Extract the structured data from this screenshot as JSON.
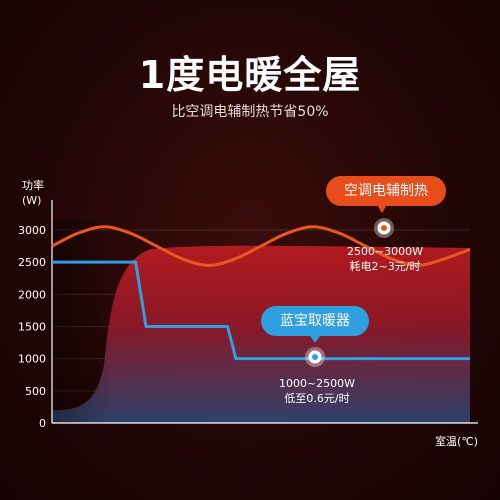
{
  "headline": "1度电暖全屋",
  "subline": "比空调电辅制热节省50%",
  "chart_data": {
    "type": "line",
    "ylabel": "功率\n(W)",
    "xlabel": "室温(℃)",
    "ylim": [
      0,
      3000
    ],
    "yticks": [
      0,
      500,
      1000,
      1500,
      2000,
      2500,
      3000
    ],
    "series": [
      {
        "name": "空调电辅制热",
        "color": "#e8571e",
        "annotation": "2500~3000W\n耗电2~3元/时",
        "x": [
          0,
          0.0625,
          0.125,
          0.1875,
          0.25,
          0.3125,
          0.375,
          0.4375,
          0.5,
          0.5625,
          0.625,
          0.6875,
          0.75,
          0.8125,
          0.875,
          0.9375,
          1.0
        ],
        "values": [
          2750,
          2950,
          3050,
          2950,
          2750,
          2550,
          2450,
          2550,
          2750,
          2950,
          3050,
          2950,
          2750,
          2550,
          2450,
          2550,
          2700
        ]
      },
      {
        "name": "蓝宝取暖器",
        "color": "#2e9fe2",
        "annotation": "1000~2500W\n低至0.6元/时",
        "x": [
          0,
          0.2,
          0.225,
          0.42,
          0.44,
          1.0
        ],
        "values": [
          2500,
          2500,
          1500,
          1500,
          1000,
          1000
        ]
      }
    ]
  }
}
